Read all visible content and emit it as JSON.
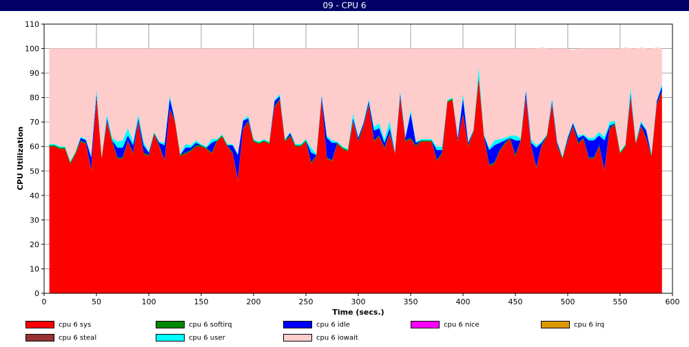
{
  "window": {
    "title": "09 - CPU 6"
  },
  "chart_data": {
    "type": "area",
    "xlabel": "Time (secs.)",
    "ylabel": "CPU Utilization",
    "xlim": [
      0,
      600
    ],
    "ylim": [
      0,
      110
    ],
    "xticks": [
      0,
      50,
      100,
      150,
      200,
      250,
      300,
      350,
      400,
      450,
      500,
      550,
      600
    ],
    "yticks": [
      0,
      10,
      20,
      30,
      40,
      50,
      60,
      70,
      80,
      90,
      100,
      110
    ],
    "grid": true,
    "legend_position": "bottom",
    "x": [
      5,
      10,
      15,
      20,
      25,
      30,
      35,
      40,
      45,
      50,
      55,
      60,
      65,
      70,
      75,
      80,
      85,
      90,
      95,
      100,
      105,
      110,
      115,
      120,
      125,
      130,
      135,
      140,
      145,
      150,
      155,
      160,
      165,
      170,
      175,
      180,
      185,
      190,
      195,
      200,
      205,
      210,
      215,
      220,
      225,
      230,
      235,
      240,
      245,
      250,
      255,
      260,
      265,
      270,
      275,
      280,
      285,
      290,
      295,
      300,
      305,
      310,
      315,
      320,
      325,
      330,
      335,
      340,
      345,
      350,
      355,
      360,
      365,
      370,
      375,
      380,
      385,
      390,
      395,
      400,
      405,
      410,
      415,
      420,
      425,
      430,
      435,
      440,
      445,
      450,
      455,
      460,
      465,
      470,
      475,
      480,
      485,
      490,
      495,
      500,
      505,
      510,
      515,
      520,
      525,
      530,
      535,
      540,
      545,
      550,
      555,
      560,
      565,
      570,
      575,
      580,
      585,
      590
    ],
    "series": [
      {
        "name": "cpu 6 sys",
        "color": "#ff0000",
        "values": [
          60,
          60,
          59,
          59,
          53,
          57,
          62,
          61,
          50,
          80,
          55,
          70,
          62,
          55,
          55,
          62,
          57,
          70,
          57,
          56,
          65,
          60,
          54,
          75,
          70,
          56,
          57,
          58,
          60,
          60,
          59,
          57,
          62,
          64,
          60,
          57,
          46,
          67,
          70,
          62,
          61,
          62,
          61,
          76,
          79,
          62,
          64,
          60,
          60,
          62,
          53,
          56,
          79,
          55,
          54,
          61,
          59,
          58,
          70,
          62,
          68,
          77,
          62,
          64,
          59,
          65,
          57,
          80,
          62,
          63,
          60,
          62,
          62,
          62,
          54,
          57,
          78,
          79,
          62,
          73,
          60,
          66,
          88,
          64,
          52,
          53,
          58,
          61,
          63,
          56,
          62,
          80,
          60,
          51,
          60,
          64,
          77,
          60,
          55,
          62,
          68,
          61,
          63,
          55,
          55,
          60,
          50,
          67,
          69,
          57,
          60,
          80,
          61,
          68,
          63,
          56,
          77,
          82
        ]
      },
      {
        "name": "cpu 6 softirq",
        "color": "#008800",
        "values": [
          0.5,
          0.5,
          0.5,
          0.5,
          0.5,
          0.5,
          0.5,
          0.5,
          0.5,
          0.5,
          0.5,
          0.5,
          0.5,
          0.5,
          0.5,
          0.5,
          0.5,
          0.5,
          0.5,
          0.5,
          0.5,
          0.5,
          0.5,
          0.5,
          0.5,
          0.5,
          0.5,
          0.5,
          0.5,
          0.5,
          0.5,
          0.5,
          0.5,
          0.5,
          0.5,
          0.5,
          0.5,
          0.5,
          0.5,
          0.5,
          0.5,
          0.5,
          0.5,
          0.5,
          0.5,
          0.5,
          0.5,
          0.5,
          0.5,
          0.5,
          0.5,
          0.5,
          0.5,
          0.5,
          0.5,
          0.5,
          0.5,
          0.5,
          0.5,
          0.5,
          0.5,
          0.5,
          0.5,
          0.5,
          0.5,
          0.5,
          0.5,
          0.5,
          0.5,
          0.5,
          0.5,
          0.5,
          0.5,
          0.5,
          0.5,
          0.5,
          0.5,
          0.5,
          0.5,
          0.5,
          0.5,
          0.5,
          0.5,
          0.5,
          0.5,
          0.5,
          0.5,
          0.5,
          0.5,
          0.5,
          0.5,
          0.5,
          0.5,
          0.5,
          0.5,
          0.5,
          0.5,
          0.5,
          0.5,
          0.5,
          0.5,
          0.5,
          0.5,
          0.5,
          0.5,
          0.5,
          0.5,
          0.5,
          0.5,
          0.5,
          0.5,
          0.5,
          0.5,
          0.5,
          0.5,
          0.5,
          0.5,
          0.5
        ]
      },
      {
        "name": "cpu 6 idle",
        "color": "#0000ff",
        "values": [
          0,
          0,
          0,
          0,
          0,
          0,
          1,
          1,
          5,
          1,
          0,
          1,
          0,
          4,
          4,
          2,
          3,
          1,
          3,
          1,
          0,
          1,
          6,
          4,
          0,
          0,
          2,
          1,
          1,
          0,
          0,
          4,
          0,
          0,
          0,
          3,
          10,
          3,
          1,
          0,
          0,
          0,
          0,
          2,
          1,
          0,
          1,
          0,
          0,
          0,
          4,
          0,
          1,
          8,
          7,
          0,
          0,
          0,
          1,
          1,
          1,
          1,
          4,
          3,
          2,
          2,
          0,
          1,
          1,
          10,
          1,
          0,
          0,
          0,
          4,
          1,
          0,
          0,
          1,
          6,
          1,
          0,
          0,
          0,
          6,
          7,
          3,
          1,
          0,
          6,
          0,
          2,
          1,
          8,
          1,
          0,
          1,
          1,
          0,
          1,
          1,
          2,
          1,
          7,
          7,
          4,
          12,
          1,
          0,
          0,
          0,
          1,
          0,
          1,
          3,
          0,
          1,
          2
        ]
      },
      {
        "name": "cpu 6 nice",
        "color": "#ff00ff",
        "values": [
          0,
          0,
          0,
          0,
          0,
          0,
          0,
          0,
          0,
          0,
          0,
          0,
          0,
          0,
          0,
          0,
          0,
          0,
          0,
          0,
          0,
          0,
          0,
          0,
          0,
          0,
          0,
          0,
          0,
          0,
          0,
          0,
          0,
          0,
          0,
          0,
          0,
          0,
          0,
          0,
          0,
          0,
          0,
          0,
          0,
          0,
          0,
          0,
          0,
          0,
          0,
          0,
          0,
          0,
          0,
          0,
          0,
          0,
          0,
          0,
          0,
          0,
          0,
          0,
          0,
          0,
          0,
          0,
          0,
          0,
          0,
          0,
          0,
          0,
          0,
          0,
          0,
          0,
          0,
          0,
          0,
          0,
          0,
          0,
          0,
          0,
          0,
          0,
          0,
          0,
          0,
          0,
          0,
          0,
          0,
          0,
          0,
          0,
          0,
          0,
          0,
          0,
          0,
          0,
          0,
          0,
          0,
          0,
          0,
          0,
          0,
          0,
          0,
          0,
          0,
          0,
          0,
          0
        ]
      },
      {
        "name": "cpu 6 irq",
        "color": "#dd9900",
        "values": [
          0,
          0,
          0,
          0,
          0,
          0,
          0,
          0,
          0,
          0,
          0,
          0,
          0,
          0,
          0,
          0,
          0,
          0,
          0,
          0,
          0,
          0,
          0,
          0,
          0,
          0,
          0,
          0,
          0,
          0,
          0,
          0,
          0,
          0,
          0,
          0,
          0,
          0,
          0,
          0,
          0,
          0,
          0,
          0,
          0,
          0,
          0,
          0,
          0,
          0,
          0,
          0,
          0,
          0,
          0,
          0,
          0,
          0,
          0,
          0,
          0,
          0,
          0,
          0,
          0,
          0,
          0,
          0,
          0,
          0,
          0,
          0,
          0,
          0,
          0,
          0,
          0,
          0,
          0,
          0,
          0,
          0,
          0,
          0,
          0,
          0,
          0,
          0,
          0,
          0,
          0,
          0,
          0,
          0,
          0,
          0,
          0,
          0,
          0,
          0,
          0,
          0,
          0,
          0,
          0,
          0,
          0,
          0,
          0,
          0,
          0,
          0,
          0,
          0,
          0,
          0,
          0,
          0
        ]
      },
      {
        "name": "cpu 6 steal",
        "color": "#993333",
        "values": [
          0,
          0,
          0,
          0,
          0,
          0,
          0,
          0,
          0,
          0,
          0,
          0,
          0,
          0,
          0,
          0,
          0,
          0,
          0,
          0,
          0,
          0,
          0,
          0,
          0,
          0,
          0,
          0,
          0,
          0,
          0,
          0,
          0,
          0,
          0,
          0,
          0,
          0,
          0,
          0,
          0,
          0,
          0,
          0,
          0,
          0,
          0,
          0,
          0,
          0,
          0,
          0,
          0,
          0,
          0,
          0,
          0,
          0,
          0,
          0,
          0,
          0,
          0,
          0,
          0,
          0,
          0,
          0,
          0,
          0,
          0,
          0,
          0,
          0,
          0,
          0,
          0,
          0,
          0,
          0,
          0,
          0,
          0,
          0,
          0,
          0,
          0,
          0,
          0,
          0,
          0,
          0,
          0,
          0,
          0,
          0,
          0,
          0,
          0,
          0,
          0,
          0,
          0,
          0,
          0,
          0,
          0,
          0,
          0,
          0,
          0,
          0,
          0,
          0,
          0,
          0,
          0,
          0
        ]
      },
      {
        "name": "cpu 6 user",
        "color": "#00ffff",
        "values": [
          0.5,
          0.5,
          0.5,
          0.5,
          0.5,
          0.5,
          0.5,
          0.5,
          0.5,
          2,
          0.5,
          1.5,
          1,
          2.5,
          3,
          3,
          1.5,
          1.5,
          1.5,
          0.5,
          0.5,
          0.5,
          1,
          1.5,
          0.5,
          0.5,
          1.5,
          1,
          1,
          0.5,
          0.5,
          1.5,
          0.5,
          0.5,
          0.5,
          0.5,
          0.5,
          0.5,
          1,
          0.5,
          0.5,
          0.5,
          0.5,
          0.5,
          1,
          0.5,
          0.5,
          0.5,
          0.5,
          0.5,
          2,
          0.5,
          1,
          1,
          1,
          0.5,
          0.5,
          0.5,
          2,
          0.5,
          0.5,
          1,
          1.5,
          2,
          1.5,
          3,
          0.5,
          1.5,
          0.5,
          1.5,
          0.5,
          0.5,
          0.5,
          0.5,
          1.5,
          1.5,
          0.5,
          0.5,
          0.5,
          2,
          0.5,
          0.5,
          4,
          0.5,
          1,
          2,
          1.5,
          1,
          1,
          2,
          1,
          1,
          1.5,
          1,
          0.5,
          0.5,
          1.5,
          0.5,
          0.5,
          0.5,
          0.5,
          1,
          0.5,
          1,
          1,
          1.5,
          1.5,
          1.5,
          1,
          0.5,
          0.5,
          2.5,
          0.5,
          1,
          0.5,
          0.5,
          0.5,
          1
        ]
      },
      {
        "name": "cpu 6 iowait",
        "color": "#ffcccc",
        "values": [
          39,
          39,
          40,
          40,
          46,
          42,
          36,
          37,
          44,
          16.5,
          44,
          27,
          36.5,
          38,
          37.5,
          32.5,
          38,
          27,
          38,
          42,
          34,
          38,
          38.5,
          19,
          29,
          43,
          39,
          39.5,
          37.5,
          39,
          40,
          37,
          37,
          35,
          39,
          39,
          43,
          29,
          27.5,
          37,
          38,
          37,
          38,
          21,
          18.5,
          37,
          34,
          39,
          39,
          37,
          40.5,
          43,
          18.5,
          35.5,
          37.5,
          38,
          40,
          41,
          26.5,
          36,
          30,
          20.5,
          32,
          30.5,
          37,
          29.5,
          42,
          17,
          36,
          25,
          38,
          37,
          37,
          37,
          40,
          40,
          21,
          20,
          36,
          18.5,
          38,
          33,
          7.5,
          35,
          40.5,
          37.5,
          37,
          36.5,
          35.5,
          35.5,
          36.5,
          16.5,
          37,
          39.5,
          38.5,
          35,
          20,
          38,
          44,
          36,
          29.5,
          35.5,
          35,
          36.5,
          36.5,
          34,
          36,
          30,
          29.5,
          42,
          39.5,
          16,
          38,
          30,
          33,
          43,
          21.5,
          14.5
        ]
      }
    ]
  },
  "legend": [
    {
      "label": "cpu 6 sys",
      "color": "#ff0000"
    },
    {
      "label": "cpu 6 softirq",
      "color": "#008800"
    },
    {
      "label": "cpu 6 idle",
      "color": "#0000ff"
    },
    {
      "label": "cpu 6 nice",
      "color": "#ff00ff"
    },
    {
      "label": "cpu 6 irq",
      "color": "#dd9900"
    },
    {
      "label": "cpu 6 steal",
      "color": "#993333"
    },
    {
      "label": "cpu 6 user",
      "color": "#00ffff"
    },
    {
      "label": "cpu 6 iowait",
      "color": "#ffcccc"
    }
  ]
}
